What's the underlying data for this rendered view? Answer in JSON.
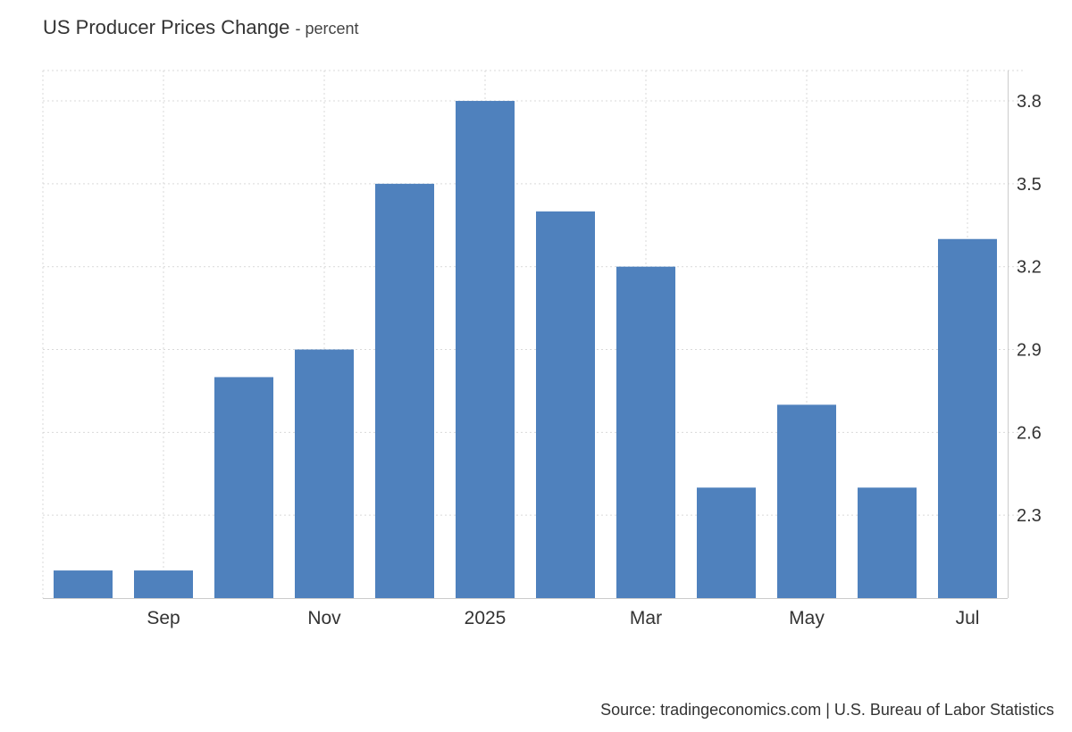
{
  "title": "US Producer Prices Change",
  "subtitle": "- percent",
  "source": "Source: tradingeconomics.com | U.S. Bureau of Labor Statistics",
  "colors": {
    "bar": "#4f81bd",
    "grid": "#d9d9d9",
    "axis": "#cccccc",
    "text": "#333333"
  },
  "chart_data": {
    "type": "bar",
    "title": "US Producer Prices Change",
    "subtitle": "percent",
    "categories": [
      "2024-08",
      "2024-09",
      "2024-10",
      "2024-11",
      "2024-12",
      "2025-01",
      "2025-02",
      "2025-03",
      "2025-04",
      "2025-05",
      "2025-06",
      "2025-07"
    ],
    "values": [
      2.1,
      2.1,
      2.8,
      2.9,
      3.5,
      3.8,
      3.4,
      3.2,
      2.4,
      2.7,
      2.4,
      3.3
    ],
    "x_tick_labels": [
      {
        "category": "2024-09",
        "label": "Sep"
      },
      {
        "category": "2024-11",
        "label": "Nov"
      },
      {
        "category": "2025-01",
        "label": "2025"
      },
      {
        "category": "2025-03",
        "label": "Mar"
      },
      {
        "category": "2025-05",
        "label": "May"
      },
      {
        "category": "2025-07",
        "label": "Jul"
      }
    ],
    "y_ticks": [
      2.3,
      2.6,
      2.9,
      3.2,
      3.5,
      3.8
    ],
    "ylim": [
      2.0,
      3.91
    ],
    "y_axis_side": "right",
    "grid": true,
    "legend": false
  }
}
